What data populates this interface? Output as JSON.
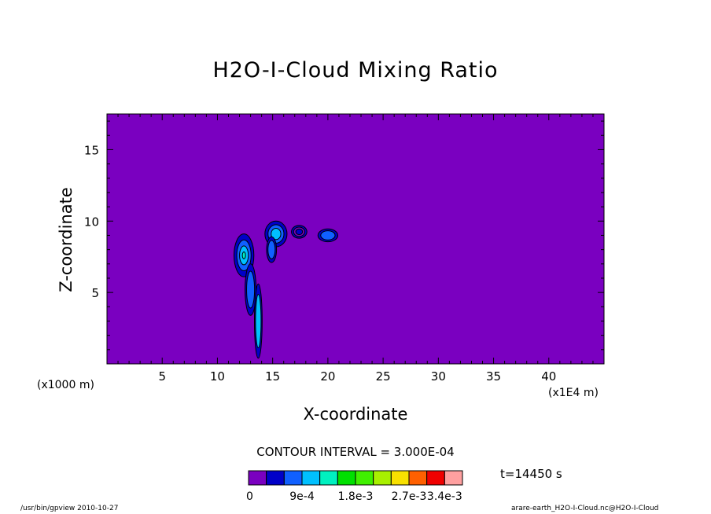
{
  "chart_data": {
    "type": "contour",
    "title": "H2O-I-Cloud Mixing Ratio",
    "xlabel": "X-coordinate",
    "ylabel": "Z-coordinate",
    "x_unit": "(x1000 m)",
    "x_scale_note": "(x1E4 m)",
    "xlim": [
      0,
      45
    ],
    "ylim": [
      0,
      17.5
    ],
    "x_ticks": [
      5,
      10,
      15,
      20,
      25,
      30,
      35,
      40
    ],
    "y_ticks": [
      5,
      10,
      15
    ],
    "contour_interval": "CONTOUR INTERVAL = 3.000E-04",
    "time": "t=14450 s",
    "colorbar": {
      "colors": [
        "#7a00c0",
        "#0000c8",
        "#1060ff",
        "#00c0ff",
        "#00f0c0",
        "#00e000",
        "#40f000",
        "#a8f000",
        "#f8e000",
        "#ff6000",
        "#f00000",
        "#ffa0a0"
      ],
      "labels": [
        "0",
        "9e-4",
        "1.8e-3",
        "2.7e-3",
        "3.4e-3"
      ]
    },
    "features": [
      {
        "x": 12.5,
        "z": 7.8,
        "level": "high"
      },
      {
        "x": 13.6,
        "z": 4.5,
        "level": "mid"
      },
      {
        "x": 15.2,
        "z": 9.2,
        "level": "mid"
      },
      {
        "x": 17.5,
        "z": 9.2,
        "level": "low"
      },
      {
        "x": 20.0,
        "z": 9.0,
        "level": "low"
      }
    ]
  },
  "footer": {
    "left": "/usr/bin/gpview   2010-10-27",
    "right": "arare-earth_H2O-I-Cloud.nc@H2O-I-Cloud"
  }
}
